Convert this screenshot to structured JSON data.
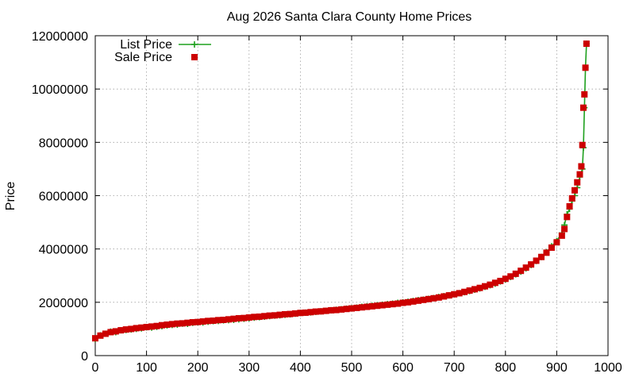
{
  "chart_data": {
    "type": "line",
    "title": "Aug 2026 Santa Clara County Home Prices",
    "xlabel": "",
    "ylabel": "Price",
    "xlim": [
      0,
      1000
    ],
    "ylim": [
      0,
      12000000
    ],
    "x_ticks": [
      0,
      100,
      200,
      300,
      400,
      500,
      600,
      700,
      800,
      900,
      1000
    ],
    "y_ticks": [
      0,
      2000000,
      4000000,
      6000000,
      8000000,
      10000000,
      12000000
    ],
    "x_tick_labels": [
      "0",
      "100",
      "200",
      "300",
      "400",
      "500",
      "600",
      "700",
      "800",
      "900",
      "1000"
    ],
    "y_tick_labels": [
      "0",
      "2000000",
      "4000000",
      "6000000",
      "8000000",
      "10000000",
      "12000000"
    ],
    "grid": true,
    "legend_position": "top-left",
    "series": [
      {
        "name": "List Price",
        "style": "linespoints",
        "marker": "plus",
        "color": "#1ea01e",
        "x": [
          0,
          10,
          20,
          30,
          40,
          50,
          60,
          70,
          80,
          90,
          100,
          110,
          120,
          130,
          140,
          150,
          160,
          170,
          180,
          190,
          200,
          210,
          220,
          230,
          240,
          250,
          260,
          270,
          280,
          290,
          300,
          310,
          320,
          330,
          340,
          350,
          360,
          370,
          380,
          390,
          400,
          410,
          420,
          430,
          440,
          450,
          460,
          470,
          480,
          490,
          500,
          510,
          520,
          530,
          540,
          550,
          560,
          570,
          580,
          590,
          600,
          610,
          620,
          630,
          640,
          650,
          660,
          670,
          680,
          690,
          700,
          710,
          720,
          730,
          740,
          750,
          760,
          770,
          780,
          790,
          800,
          810,
          820,
          830,
          840,
          850,
          860,
          870,
          880,
          890,
          900,
          910,
          915,
          920,
          925,
          930,
          935,
          940,
          945,
          950,
          952,
          954,
          956,
          958
        ],
        "y": [
          620000,
          760000,
          820000,
          900000,
          880000,
          950000,
          960000,
          980000,
          1000000,
          1020000,
          1060000,
          1050000,
          1080000,
          1100000,
          1130000,
          1150000,
          1160000,
          1200000,
          1190000,
          1230000,
          1250000,
          1240000,
          1270000,
          1290000,
          1300000,
          1320000,
          1330000,
          1340000,
          1360000,
          1380000,
          1400000,
          1420000,
          1440000,
          1460000,
          1480000,
          1500000,
          1510000,
          1530000,
          1550000,
          1570000,
          1600000,
          1610000,
          1620000,
          1640000,
          1660000,
          1680000,
          1700000,
          1720000,
          1740000,
          1760000,
          1780000,
          1800000,
          1830000,
          1850000,
          1870000,
          1890000,
          1910000,
          1930000,
          1950000,
          1980000,
          2000000,
          2020000,
          2050000,
          2080000,
          2100000,
          2130000,
          2160000,
          2200000,
          2230000,
          2260000,
          2300000,
          2340000,
          2380000,
          2420000,
          2470000,
          2520000,
          2580000,
          2640000,
          2700000,
          2780000,
          2860000,
          2950000,
          3050000,
          3150000,
          3270000,
          3400000,
          3550000,
          3700000,
          3880000,
          4100000,
          4300000,
          4600000,
          4900000,
          5300000,
          5500000,
          5800000,
          6000000,
          6300000,
          6700000,
          7000000,
          7800000,
          9300000,
          10800000,
          11700000
        ]
      },
      {
        "name": "Sale Price",
        "style": "points",
        "marker": "square",
        "color": "#cc0000",
        "x": [
          0,
          10,
          20,
          30,
          40,
          50,
          60,
          70,
          80,
          90,
          100,
          110,
          120,
          130,
          140,
          150,
          160,
          170,
          180,
          190,
          200,
          210,
          220,
          230,
          240,
          250,
          260,
          270,
          280,
          290,
          300,
          310,
          320,
          330,
          340,
          350,
          360,
          370,
          380,
          390,
          400,
          410,
          420,
          430,
          440,
          450,
          460,
          470,
          480,
          490,
          500,
          510,
          520,
          530,
          540,
          550,
          560,
          570,
          580,
          590,
          600,
          610,
          620,
          630,
          640,
          650,
          660,
          670,
          680,
          690,
          700,
          710,
          720,
          730,
          740,
          750,
          760,
          770,
          780,
          790,
          800,
          810,
          820,
          830,
          840,
          850,
          860,
          870,
          880,
          890,
          900,
          910,
          915,
          920,
          925,
          930,
          935,
          940,
          945,
          948,
          950,
          952,
          954,
          956,
          958
        ],
        "y": [
          650000,
          750000,
          820000,
          880000,
          910000,
          950000,
          980000,
          1000000,
          1030000,
          1050000,
          1070000,
          1090000,
          1110000,
          1140000,
          1160000,
          1180000,
          1200000,
          1210000,
          1230000,
          1250000,
          1260000,
          1280000,
          1300000,
          1310000,
          1330000,
          1340000,
          1360000,
          1380000,
          1400000,
          1410000,
          1430000,
          1450000,
          1460000,
          1480000,
          1500000,
          1510000,
          1530000,
          1550000,
          1560000,
          1580000,
          1600000,
          1610000,
          1630000,
          1650000,
          1660000,
          1680000,
          1700000,
          1710000,
          1730000,
          1750000,
          1770000,
          1790000,
          1810000,
          1830000,
          1850000,
          1870000,
          1890000,
          1910000,
          1930000,
          1950000,
          1980000,
          2000000,
          2030000,
          2060000,
          2090000,
          2120000,
          2150000,
          2180000,
          2220000,
          2260000,
          2300000,
          2340000,
          2390000,
          2440000,
          2490000,
          2540000,
          2600000,
          2660000,
          2730000,
          2800000,
          2880000,
          2970000,
          3070000,
          3180000,
          3300000,
          3420000,
          3560000,
          3700000,
          3860000,
          4050000,
          4250000,
          4500000,
          4750000,
          5200000,
          5600000,
          5900000,
          6200000,
          6500000,
          6800000,
          7100000,
          7900000,
          9300000,
          9800000,
          10800000,
          11700000
        ]
      }
    ]
  }
}
